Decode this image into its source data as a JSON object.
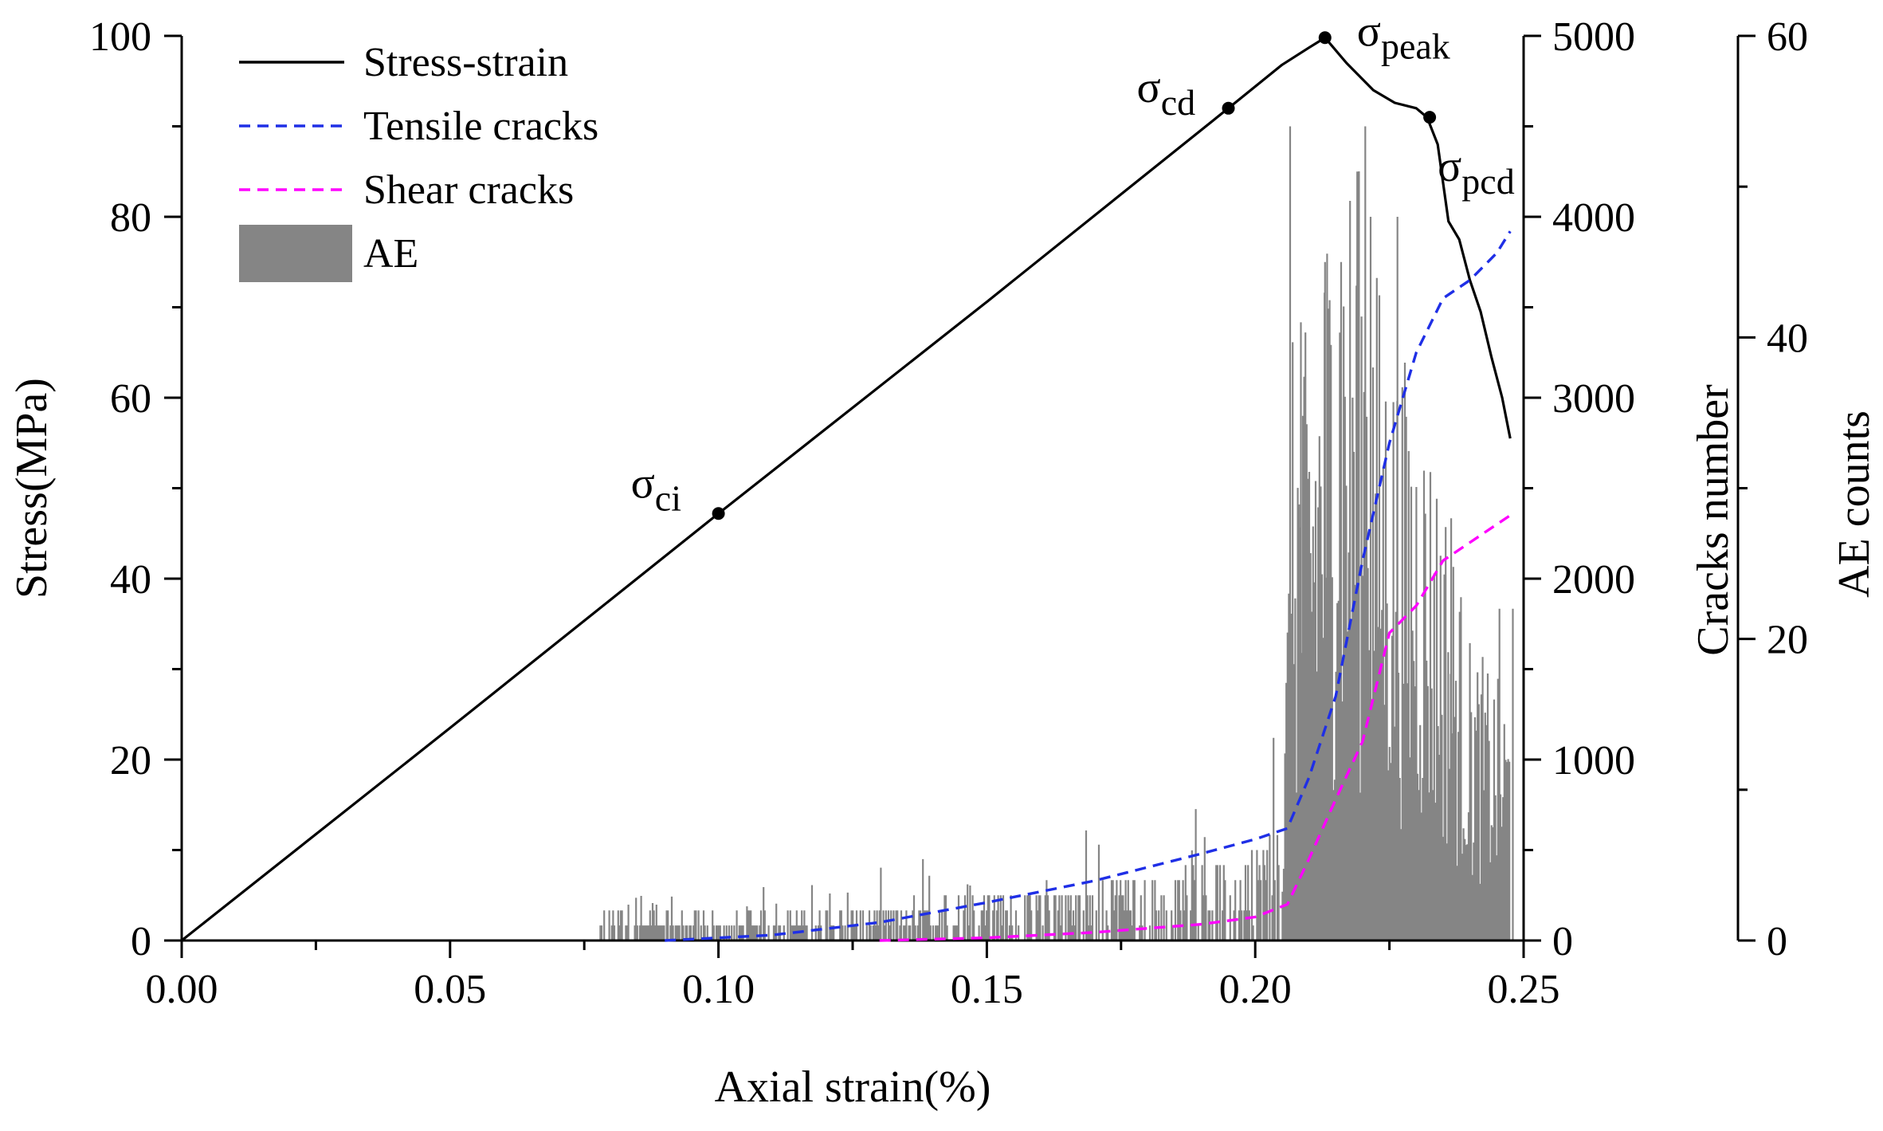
{
  "chart_data": {
    "type": "line",
    "xlabel": "Axial strain(%)",
    "xlim": [
      0,
      0.25
    ],
    "xticks": [
      0.0,
      0.05,
      0.1,
      0.15,
      0.2,
      0.25
    ],
    "xtick_labels": [
      "0.00",
      "0.05",
      "0.10",
      "0.15",
      "0.20",
      "0.25"
    ],
    "axes": {
      "stress": {
        "label": "Stress(MPa)",
        "lim": [
          0,
          100
        ],
        "ticks": [
          0,
          20,
          40,
          60,
          80,
          100
        ]
      },
      "cracks": {
        "label": "Cracks number",
        "lim": [
          0,
          5000
        ],
        "ticks": [
          0,
          1000,
          2000,
          3000,
          4000,
          5000
        ]
      },
      "ae": {
        "label": "AE counts",
        "lim": [
          0,
          60
        ],
        "ticks": [
          0,
          20,
          40,
          60
        ]
      }
    },
    "series": [
      {
        "name": "Stress-strain",
        "axis": "stress",
        "style": "solid",
        "color": "#000000",
        "x": [
          0,
          0.05,
          0.1,
          0.15,
          0.195,
          0.205,
          0.21,
          0.213,
          0.217,
          0.222,
          0.226,
          0.23,
          0.232,
          0.234,
          0.236,
          0.238,
          0.24,
          0.242,
          0.244,
          0.246,
          0.2475
        ],
        "y": [
          0,
          23.5,
          47.2,
          70.6,
          92.0,
          96.8,
          98.7,
          99.8,
          97.0,
          94.0,
          92.6,
          92.0,
          91.0,
          88.0,
          79.5,
          77.5,
          73.0,
          69.5,
          64.5,
          60.0,
          55.5
        ]
      },
      {
        "name": "Tensile cracks",
        "axis": "cracks",
        "style": "dashed",
        "color": "#1f2fe6",
        "x": [
          0.09,
          0.11,
          0.13,
          0.15,
          0.17,
          0.19,
          0.2,
          0.206,
          0.21,
          0.215,
          0.22,
          0.225,
          0.23,
          0.235,
          0.24,
          0.245,
          0.2475
        ],
        "y": [
          0,
          30,
          100,
          210,
          330,
          480,
          560,
          620,
          900,
          1350,
          2100,
          2750,
          3250,
          3550,
          3650,
          3800,
          3920
        ]
      },
      {
        "name": "Shear cracks",
        "axis": "cracks",
        "style": "dashed",
        "color": "#ff00ff",
        "x": [
          0.13,
          0.15,
          0.17,
          0.19,
          0.2,
          0.206,
          0.21,
          0.215,
          0.22,
          0.225,
          0.23,
          0.235,
          0.24,
          0.245,
          0.2475
        ],
        "y": [
          0,
          15,
          45,
          90,
          130,
          200,
          450,
          780,
          1100,
          1700,
          1850,
          2100,
          2200,
          2300,
          2350
        ]
      },
      {
        "name": "AE",
        "axis": "ae",
        "style": "bars",
        "color": "#858585",
        "x_range": [
          0.078,
          0.2475
        ],
        "envelope": [
          [
            0.078,
            1
          ],
          [
            0.1,
            1
          ],
          [
            0.12,
            1.2
          ],
          [
            0.15,
            1.8
          ],
          [
            0.18,
            2.5
          ],
          [
            0.2,
            3.5
          ],
          [
            0.205,
            5
          ],
          [
            0.207,
            30
          ],
          [
            0.21,
            30
          ],
          [
            0.215,
            40
          ],
          [
            0.22,
            38
          ],
          [
            0.225,
            30
          ],
          [
            0.23,
            28
          ],
          [
            0.235,
            23
          ],
          [
            0.24,
            15
          ],
          [
            0.2475,
            12
          ]
        ],
        "peaks": [
          [
            0.2065,
            54
          ],
          [
            0.2085,
            41
          ],
          [
            0.213,
            45
          ],
          [
            0.216,
            45
          ],
          [
            0.219,
            51
          ],
          [
            0.2205,
            54
          ],
          [
            0.2215,
            48
          ],
          [
            0.2265,
            48
          ],
          [
            0.2365,
            28
          ],
          [
            0.2455,
            22
          ],
          [
            0.248,
            22
          ]
        ]
      }
    ],
    "annotations": [
      {
        "label": "σ",
        "sub": "ci",
        "x": 0.1,
        "y": 47.2
      },
      {
        "label": "σ",
        "sub": "cd",
        "x": 0.195,
        "y": 92.0
      },
      {
        "label": "σ",
        "sub": "peak",
        "x": 0.213,
        "y": 99.8
      },
      {
        "label": "σ",
        "sub": "pcd",
        "x": 0.2325,
        "y": 91.0
      }
    ],
    "legend_position": "top-left"
  }
}
